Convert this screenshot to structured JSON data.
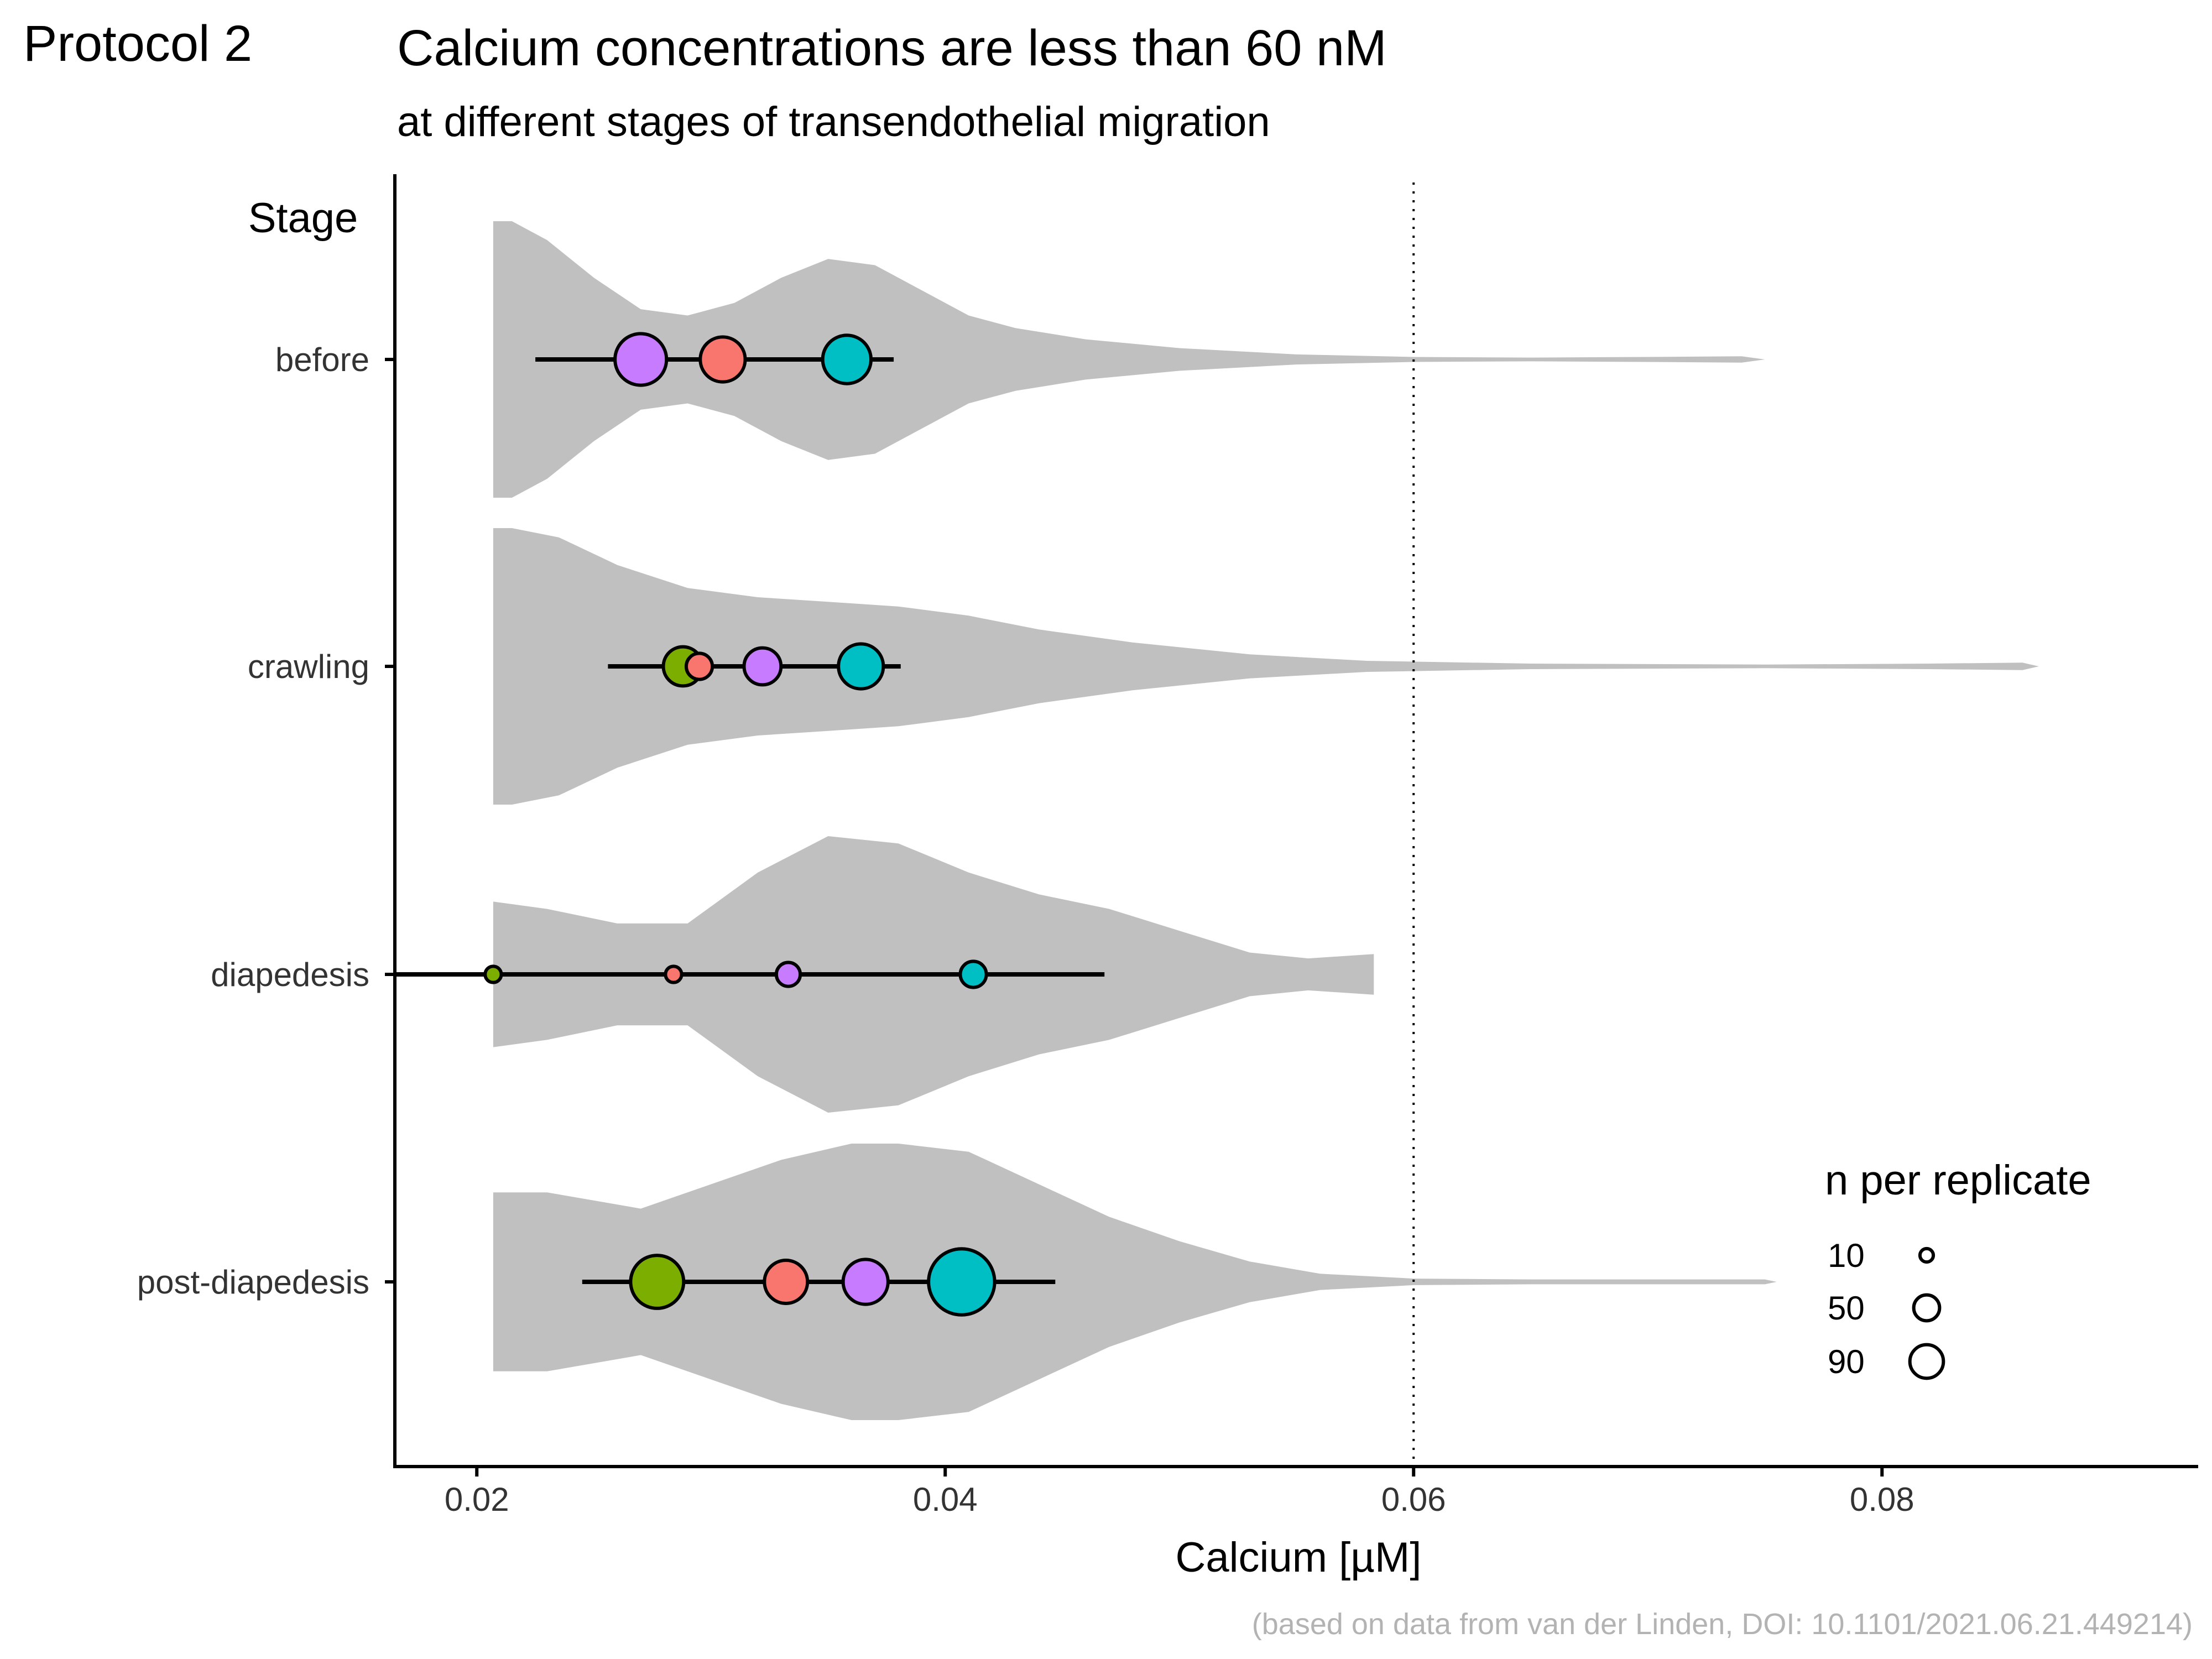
{
  "tag": "Protocol 2",
  "title": "Calcium concentrations are less than 60 nM",
  "subtitle": "at different stages of transendothelial migration",
  "caption": "(based on data from van der Linden, DOI: 10.1101/2021.06.21.449214)",
  "colors": {
    "violin": "#c0c0c0",
    "axis": "#000000",
    "ref_line": "#000000",
    "replicates": [
      "#F8766D",
      "#7CAE00",
      "#00BFC4",
      "#C77CFF"
    ]
  },
  "chart_data": {
    "type": "violin",
    "ylabel": "Stage",
    "xlabel": "Calcium [µM]",
    "xlim": [
      0.0165,
      0.0935
    ],
    "x_ticks": [
      0.02,
      0.04,
      0.06,
      0.08
    ],
    "x_tick_labels": [
      "0.02",
      "0.04",
      "0.06",
      "0.08"
    ],
    "reference_line": {
      "x": 0.06,
      "style": "dotted"
    },
    "categories": [
      "before",
      "crawling",
      "diapedesis",
      "post-diapedesis"
    ],
    "violins": [
      {
        "stage": "before",
        "max": 0.075,
        "profile": [
          [
            0.0207,
            0.22
          ],
          [
            0.0215,
            0.22
          ],
          [
            0.023,
            0.19
          ],
          [
            0.025,
            0.13
          ],
          [
            0.027,
            0.08
          ],
          [
            0.029,
            0.07
          ],
          [
            0.031,
            0.09
          ],
          [
            0.033,
            0.13
          ],
          [
            0.035,
            0.16
          ],
          [
            0.037,
            0.15
          ],
          [
            0.039,
            0.11
          ],
          [
            0.041,
            0.07
          ],
          [
            0.043,
            0.05
          ],
          [
            0.046,
            0.032
          ],
          [
            0.05,
            0.018
          ],
          [
            0.055,
            0.008
          ],
          [
            0.06,
            0.004
          ],
          [
            0.065,
            0.003
          ],
          [
            0.07,
            0.004
          ],
          [
            0.074,
            0.005
          ],
          [
            0.075,
            0
          ]
        ]
      },
      {
        "stage": "crawling",
        "max": 0.0867,
        "profile": [
          [
            0.0207,
            0.15
          ],
          [
            0.0215,
            0.15
          ],
          [
            0.0235,
            0.14
          ],
          [
            0.026,
            0.11
          ],
          [
            0.029,
            0.085
          ],
          [
            0.032,
            0.075
          ],
          [
            0.035,
            0.07
          ],
          [
            0.038,
            0.065
          ],
          [
            0.041,
            0.055
          ],
          [
            0.044,
            0.04
          ],
          [
            0.048,
            0.026
          ],
          [
            0.053,
            0.013
          ],
          [
            0.058,
            0.006
          ],
          [
            0.065,
            0.003
          ],
          [
            0.075,
            0.002
          ],
          [
            0.082,
            0.003
          ],
          [
            0.086,
            0.004
          ],
          [
            0.0867,
            0
          ]
        ]
      },
      {
        "stage": "diapedesis",
        "max": 0.0583,
        "profile": [
          [
            0.0207,
            0.1
          ],
          [
            0.023,
            0.09
          ],
          [
            0.026,
            0.07
          ],
          [
            0.029,
            0.07
          ],
          [
            0.032,
            0.14
          ],
          [
            0.035,
            0.19
          ],
          [
            0.038,
            0.18
          ],
          [
            0.041,
            0.14
          ],
          [
            0.044,
            0.11
          ],
          [
            0.047,
            0.09
          ],
          [
            0.05,
            0.06
          ],
          [
            0.053,
            0.03
          ],
          [
            0.0555,
            0.022
          ],
          [
            0.0583,
            0.028
          ]
        ]
      },
      {
        "stage": "post-diapedesis",
        "max": 0.0755,
        "profile": [
          [
            0.0207,
            0.11
          ],
          [
            0.0215,
            0.11
          ],
          [
            0.023,
            0.11
          ],
          [
            0.025,
            0.1
          ],
          [
            0.027,
            0.09
          ],
          [
            0.03,
            0.12
          ],
          [
            0.033,
            0.15
          ],
          [
            0.036,
            0.17
          ],
          [
            0.038,
            0.17
          ],
          [
            0.041,
            0.16
          ],
          [
            0.044,
            0.12
          ],
          [
            0.047,
            0.08
          ],
          [
            0.05,
            0.05
          ],
          [
            0.053,
            0.025
          ],
          [
            0.056,
            0.01
          ],
          [
            0.06,
            0.004
          ],
          [
            0.065,
            0.003
          ],
          [
            0.07,
            0.003
          ],
          [
            0.075,
            0.003
          ],
          [
            0.0755,
            0
          ]
        ]
      }
    ],
    "error_bars": [
      {
        "stage": "before",
        "low": 0.0225,
        "high": 0.0378
      },
      {
        "stage": "crawling",
        "low": 0.0256,
        "high": 0.0381
      },
      {
        "stage": "diapedesis",
        "low": 0.0165,
        "high": 0.0468
      },
      {
        "stage": "post-diapedesis",
        "low": 0.0245,
        "high": 0.0447
      }
    ],
    "points": [
      {
        "stage": "before",
        "x": 0.027,
        "n": 75,
        "color": "#C77CFF"
      },
      {
        "stage": "before",
        "x": 0.0305,
        "n": 55,
        "color": "#F8766D"
      },
      {
        "stage": "before",
        "x": 0.0358,
        "n": 65,
        "color": "#00BFC4"
      },
      {
        "stage": "crawling",
        "x": 0.0288,
        "n": 40,
        "color": "#7CAE00"
      },
      {
        "stage": "crawling",
        "x": 0.0295,
        "n": 15,
        "color": "#F8766D"
      },
      {
        "stage": "crawling",
        "x": 0.0322,
        "n": 35,
        "color": "#C77CFF"
      },
      {
        "stage": "crawling",
        "x": 0.0364,
        "n": 55,
        "color": "#00BFC4"
      },
      {
        "stage": "diapedesis",
        "x": 0.0207,
        "n": 4,
        "color": "#7CAE00"
      },
      {
        "stage": "diapedesis",
        "x": 0.0284,
        "n": 4,
        "color": "#F8766D"
      },
      {
        "stage": "diapedesis",
        "x": 0.0333,
        "n": 12,
        "color": "#C77CFF"
      },
      {
        "stage": "diapedesis",
        "x": 0.0412,
        "n": 15,
        "color": "#00BFC4"
      },
      {
        "stage": "post-diapedesis",
        "x": 0.0277,
        "n": 80,
        "color": "#7CAE00"
      },
      {
        "stage": "post-diapedesis",
        "x": 0.0332,
        "n": 50,
        "color": "#F8766D"
      },
      {
        "stage": "post-diapedesis",
        "x": 0.0366,
        "n": 55,
        "color": "#C77CFF"
      },
      {
        "stage": "post-diapedesis",
        "x": 0.0407,
        "n": 130,
        "color": "#00BFC4"
      }
    ],
    "size_legend": {
      "title": "n per replicate",
      "entries": [
        {
          "label": "10",
          "n": 10
        },
        {
          "label": "50",
          "n": 50
        },
        {
          "label": "90",
          "n": 90
        }
      ]
    },
    "grid": false
  }
}
